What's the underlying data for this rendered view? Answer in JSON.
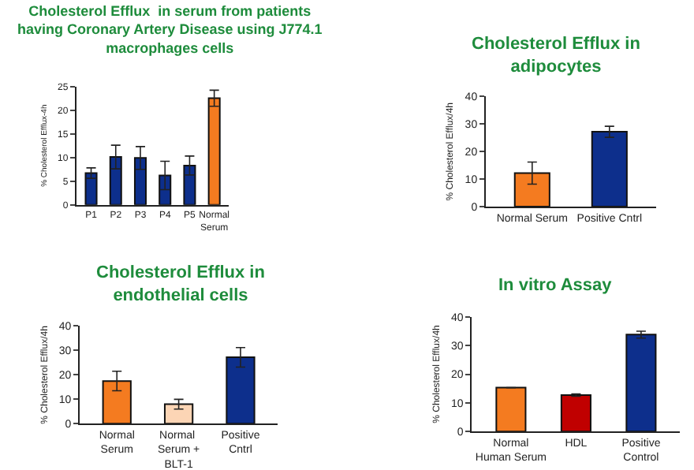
{
  "chart_data": [
    {
      "type": "bar",
      "title": "Cholesterol Efflux  in serum from patients having Coronary Artery Disease using J774.1 macrophages cells",
      "ylabel": "% Cholesterol Efflux-4h",
      "categories": [
        "P1",
        "P2",
        "P3",
        "P4",
        "P5",
        "Normal Serum"
      ],
      "values": [
        6.7,
        10.1,
        9.9,
        6.2,
        8.3,
        22.5
      ],
      "errors": [
        1.1,
        2.5,
        2.4,
        3.0,
        2.0,
        1.7
      ],
      "colors": [
        "#0d2f8c",
        "#0d2f8c",
        "#0d2f8c",
        "#0d2f8c",
        "#0d2f8c",
        "#f47b20"
      ],
      "ylim": [
        0,
        25
      ],
      "yticks": [
        0,
        5,
        10,
        15,
        20,
        25
      ]
    },
    {
      "type": "bar",
      "title": "Cholesterol Efflux in adipocytes",
      "ylabel": "% Cholesterol Efflux/4h",
      "categories": [
        "Normal Serum",
        "Positive Cntrl"
      ],
      "values": [
        12.2,
        27.2
      ],
      "errors": [
        4.0,
        2.0
      ],
      "colors": [
        "#f47b20",
        "#0d2f8c"
      ],
      "ylim": [
        0,
        40
      ],
      "yticks": [
        0,
        10,
        20,
        30,
        40
      ]
    },
    {
      "type": "bar",
      "title": "Cholesterol Efflux in endothelial cells",
      "ylabel": "% Cholesterol Efflux/4h",
      "categories": [
        "Normal Serum",
        "Normal  Serum + BLT-1",
        "Positive Cntrl"
      ],
      "values": [
        17.5,
        8.0,
        27.2
      ],
      "errors": [
        4.0,
        2.0,
        4.0
      ],
      "colors": [
        "#f47b20",
        "#fcd5b5",
        "#0d2f8c"
      ],
      "ylim": [
        0,
        40
      ],
      "yticks": [
        0,
        10,
        20,
        30,
        40
      ]
    },
    {
      "type": "bar",
      "title": "In vitro Assay",
      "ylabel": "% Cholesterol Efflux/4h",
      "categories": [
        "Normal Human Serum",
        "HDL",
        "Positive Control"
      ],
      "values": [
        15.3,
        12.7,
        33.8
      ],
      "errors": [
        null,
        0.4,
        1.2
      ],
      "colors": [
        "#f47b20",
        "#c00000",
        "#0d2f8c"
      ],
      "ylim": [
        0,
        40
      ],
      "yticks": [
        0,
        10,
        20,
        30,
        40
      ]
    }
  ]
}
